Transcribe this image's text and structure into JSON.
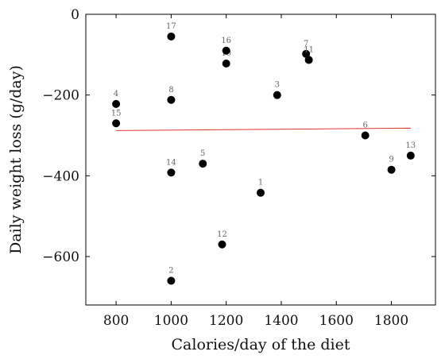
{
  "chart_data": {
    "type": "scatter",
    "title": "",
    "xlabel": "Calories/day of the diet",
    "ylabel": "Daily weight loss (g/day)",
    "xlim": [
      690,
      1960
    ],
    "ylim": [
      -720,
      0
    ],
    "xticks": [
      800,
      1000,
      1200,
      1400,
      1600,
      1800
    ],
    "yticks": [
      0,
      -200,
      -400,
      -600
    ],
    "ytick_labels": [
      "0",
      "−200",
      "−400",
      "−600"
    ],
    "grid": false,
    "marker_color": "#000000",
    "trend_color": "#e0312b",
    "points": [
      {
        "label": "1",
        "x": 1325,
        "y": -442
      },
      {
        "label": "2",
        "x": 1000,
        "y": -660
      },
      {
        "label": "3",
        "x": 1385,
        "y": -200
      },
      {
        "label": "4",
        "x": 800,
        "y": -222
      },
      {
        "label": "5",
        "x": 1115,
        "y": -370
      },
      {
        "label": "6",
        "x": 1705,
        "y": -300
      },
      {
        "label": "7",
        "x": 1490,
        "y": -98
      },
      {
        "label": "8",
        "x": 1000,
        "y": -212
      },
      {
        "label": "9",
        "x": 1800,
        "y": -385
      },
      {
        "label": "10",
        "x": 1200,
        "y": -122
      },
      {
        "label": "11",
        "x": 1500,
        "y": -113
      },
      {
        "label": "12",
        "x": 1185,
        "y": -570
      },
      {
        "label": "13",
        "x": 1870,
        "y": -350
      },
      {
        "label": "14",
        "x": 1000,
        "y": -392
      },
      {
        "label": "15",
        "x": 800,
        "y": -270
      },
      {
        "label": "16",
        "x": 1200,
        "y": -90
      },
      {
        "label": "17",
        "x": 1000,
        "y": -55
      }
    ],
    "trend_line": {
      "x": [
        800,
        1870
      ],
      "y": [
        -288,
        -282
      ]
    }
  }
}
